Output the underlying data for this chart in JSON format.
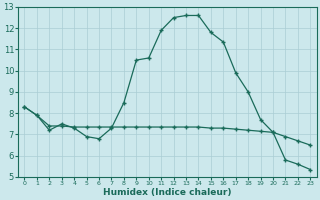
{
  "xlabel": "Humidex (Indice chaleur)",
  "x": [
    0,
    1,
    2,
    3,
    4,
    5,
    6,
    7,
    8,
    9,
    10,
    11,
    12,
    13,
    14,
    15,
    16,
    17,
    18,
    19,
    20,
    21,
    22,
    23
  ],
  "line1_y": [
    8.3,
    7.9,
    7.2,
    7.5,
    7.3,
    6.9,
    6.8,
    7.3,
    8.5,
    10.5,
    10.6,
    11.9,
    12.5,
    12.6,
    12.6,
    11.8,
    11.35,
    9.9,
    9.0,
    7.7,
    7.1,
    5.8,
    5.6,
    5.35
  ],
  "line2_y": [
    8.3,
    7.9,
    7.4,
    7.4,
    7.35,
    7.35,
    7.35,
    7.35,
    7.35,
    7.35,
    7.35,
    7.35,
    7.35,
    7.35,
    7.35,
    7.3,
    7.3,
    7.25,
    7.2,
    7.15,
    7.1,
    6.9,
    6.7,
    6.5
  ],
  "line_color": "#1a6b5a",
  "bg_color": "#cce8ec",
  "grid_color": "#aacdd4",
  "ylim": [
    5,
    13
  ],
  "xlim": [
    -0.5,
    23.5
  ],
  "yticks": [
    5,
    6,
    7,
    8,
    9,
    10,
    11,
    12,
    13
  ],
  "xticks": [
    0,
    1,
    2,
    3,
    4,
    5,
    6,
    7,
    8,
    9,
    10,
    11,
    12,
    13,
    14,
    15,
    16,
    17,
    18,
    19,
    20,
    21,
    22,
    23
  ]
}
